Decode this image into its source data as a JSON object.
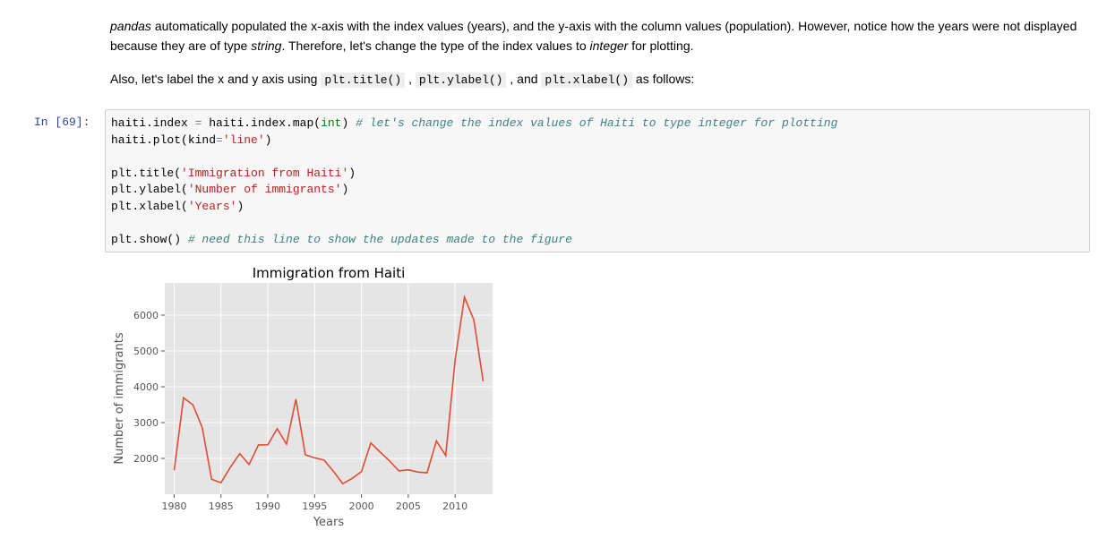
{
  "markdown": {
    "p1_parts": [
      {
        "t": "pandas",
        "style": "italic"
      },
      {
        "t": " automatically populated the x-axis with the index values (years), and the y-axis with the column values (population). However, notice how the years were not displayed because they are of type ",
        "style": "normal"
      },
      {
        "t": "string",
        "style": "italic"
      },
      {
        "t": ". Therefore, let's change the type of the index values to ",
        "style": "normal"
      },
      {
        "t": "integer",
        "style": "italic"
      },
      {
        "t": " for plotting.",
        "style": "normal"
      }
    ],
    "p2_parts": [
      {
        "t": "Also, let's label the x and y axis using ",
        "style": "normal"
      },
      {
        "t": "plt.title()",
        "style": "code"
      },
      {
        "t": " , ",
        "style": "normal"
      },
      {
        "t": "plt.ylabel()",
        "style": "code"
      },
      {
        "t": " , and ",
        "style": "normal"
      },
      {
        "t": "plt.xlabel()",
        "style": "code"
      },
      {
        "t": " as follows:",
        "style": "normal"
      }
    ]
  },
  "cell": {
    "prompt": "In [69]:",
    "lines": [
      [
        {
          "t": "haiti.index ",
          "c": "name"
        },
        {
          "t": "=",
          "c": "op"
        },
        {
          "t": " haiti.index.map(",
          "c": "name"
        },
        {
          "t": "int",
          "c": "builtin"
        },
        {
          "t": ") ",
          "c": "name"
        },
        {
          "t": "# let's change the index values of Haiti to type integer for plotting",
          "c": "comment"
        }
      ],
      [
        {
          "t": "haiti.plot(kind",
          "c": "name"
        },
        {
          "t": "=",
          "c": "op"
        },
        {
          "t": "'line'",
          "c": "str"
        },
        {
          "t": ")",
          "c": "name"
        }
      ],
      [],
      [
        {
          "t": "plt.title(",
          "c": "name"
        },
        {
          "t": "'Immigration from Haiti'",
          "c": "str"
        },
        {
          "t": ")",
          "c": "name"
        }
      ],
      [
        {
          "t": "plt.ylabel(",
          "c": "name"
        },
        {
          "t": "'Number of immigrants'",
          "c": "str"
        },
        {
          "t": ")",
          "c": "name"
        }
      ],
      [
        {
          "t": "plt.xlabel(",
          "c": "name"
        },
        {
          "t": "'Years'",
          "c": "str"
        },
        {
          "t": ")",
          "c": "name"
        }
      ],
      [],
      [
        {
          "t": "plt.show() ",
          "c": "name"
        },
        {
          "t": "# need this line to show the updates made to the figure",
          "c": "comment"
        }
      ]
    ]
  },
  "chart_data": {
    "type": "line",
    "title": "Immigration from Haiti",
    "xlabel": "Years",
    "ylabel": "Number of immigrants",
    "xlim": [
      1979,
      2014
    ],
    "ylim": [
      1000,
      6900
    ],
    "xticks": [
      1980,
      1985,
      1990,
      1995,
      2000,
      2005,
      2010
    ],
    "yticks": [
      2000,
      3000,
      4000,
      5000,
      6000
    ],
    "grid": true,
    "color": "#E24A33",
    "background": "#E5E5E5",
    "x": [
      1980,
      1981,
      1982,
      1983,
      1984,
      1985,
      1986,
      1987,
      1988,
      1989,
      1990,
      1991,
      1992,
      1993,
      1994,
      1995,
      1996,
      1997,
      1998,
      1999,
      2000,
      2001,
      2002,
      2003,
      2004,
      2005,
      2006,
      2007,
      2008,
      2009,
      2010,
      2011,
      2012,
      2013
    ],
    "series": [
      {
        "values": [
          1666,
          3692,
          3498,
          2860,
          1418,
          1321,
          1753,
          2132,
          1829,
          2377,
          2379,
          2829,
          2399,
          3655,
          2100,
          2014,
          1955,
          1645,
          1295,
          1439,
          1631,
          2433,
          2174,
          1930,
          1652,
          1682,
          1619,
          1598,
          2491,
          2080,
          4744,
          6503,
          5868,
          4152
        ]
      }
    ]
  }
}
